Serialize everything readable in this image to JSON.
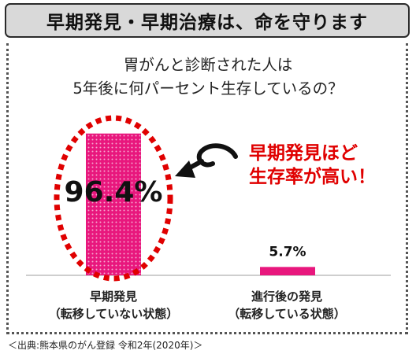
{
  "title": "早期発見・早期治療は、命を守ります",
  "question": {
    "line1": "胃がんと診断された人は",
    "line2": "5年後に何パーセント生存しているの？"
  },
  "callout": {
    "line1": "早期発見ほど",
    "line2": "生存率が高い！"
  },
  "colors": {
    "bar": "#e8177d",
    "callout": "#e00000",
    "ellipse": "#e00000"
  },
  "chart_data": {
    "type": "bar",
    "categories": [
      [
        "早期発見",
        "（転移していない状態）"
      ],
      [
        "進行後の発見",
        "（転移している状態）"
      ]
    ],
    "values": [
      96.4,
      5.7
    ],
    "value_labels": [
      "96.4%",
      "5.7%"
    ],
    "ylim": [
      0,
      100
    ],
    "grid": false,
    "legend": "none"
  },
  "source": "＜出典:熊本県のがん登録 令和2年(2020年)＞"
}
